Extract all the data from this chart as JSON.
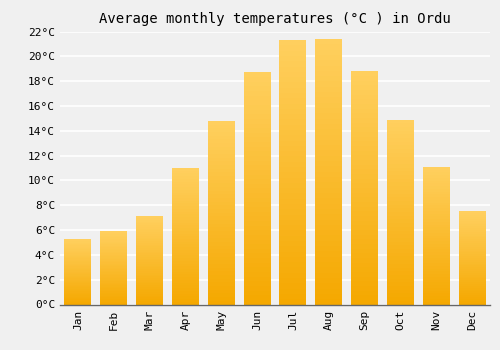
{
  "title": "Average monthly temperatures (°C ) in Ordu",
  "months": [
    "Jan",
    "Feb",
    "Mar",
    "Apr",
    "May",
    "Jun",
    "Jul",
    "Aug",
    "Sep",
    "Oct",
    "Nov",
    "Dec"
  ],
  "temperatures": [
    5.3,
    5.9,
    7.1,
    11.0,
    14.8,
    18.7,
    21.3,
    21.4,
    18.8,
    14.9,
    11.1,
    7.5
  ],
  "bar_color": "#FFAA00",
  "bar_edge_color": "#FFC844",
  "ylim": [
    0,
    22
  ],
  "yticks": [
    0,
    2,
    4,
    6,
    8,
    10,
    12,
    14,
    16,
    18,
    20,
    22
  ],
  "background_color": "#F0F0F0",
  "grid_color": "#FFFFFF",
  "title_fontsize": 10,
  "tick_fontsize": 8,
  "font_family": "monospace",
  "bar_width": 0.75
}
